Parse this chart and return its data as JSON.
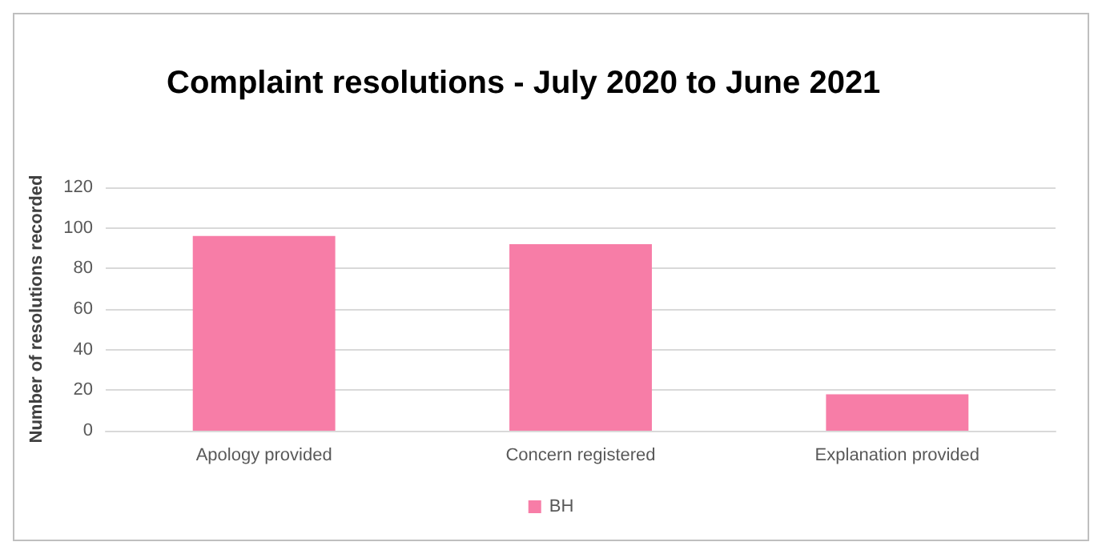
{
  "chart_data": {
    "type": "bar",
    "title": "Complaint resolutions - July 2020 to June 2021",
    "ylabel": "Number of resolutions recorded",
    "categories": [
      "Apology provided",
      "Concern registered",
      "Explanation provided"
    ],
    "series": [
      {
        "name": "BH",
        "color": "#f77da7",
        "values": [
          96,
          92,
          18
        ]
      }
    ],
    "ylim": [
      0,
      120
    ],
    "yticks": [
      0,
      20,
      40,
      60,
      80,
      100,
      120
    ],
    "grid": "y",
    "legend": "bottom"
  }
}
